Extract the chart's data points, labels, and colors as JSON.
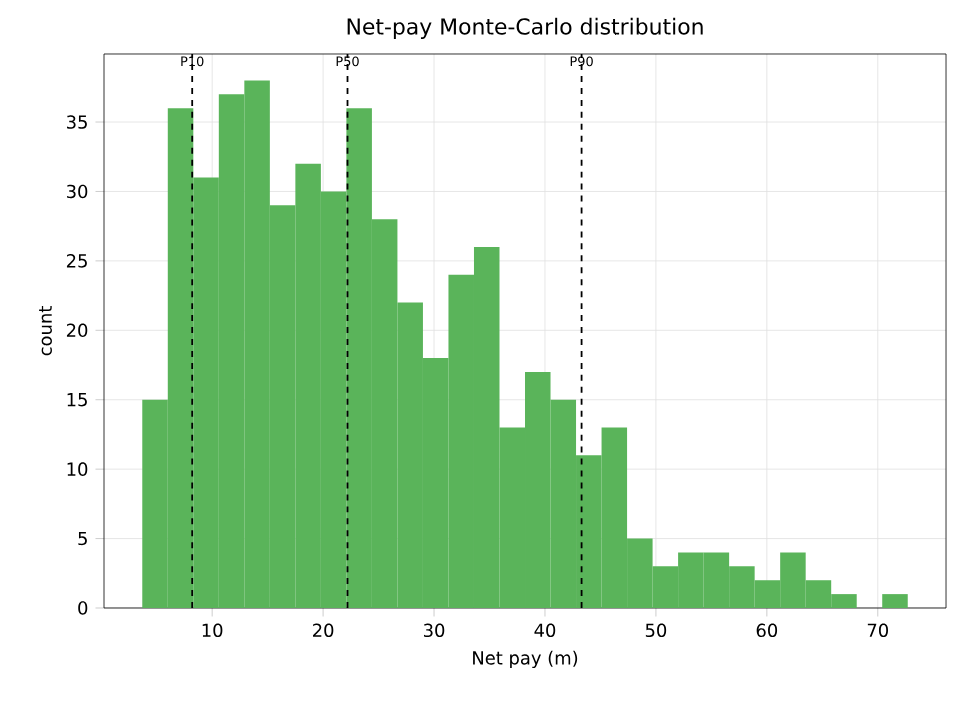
{
  "chart_data": {
    "type": "histogram",
    "title": "Net-pay Monte-Carlo distribution",
    "xlabel": "Net pay (m)",
    "ylabel": "count",
    "bins": [
      3.7,
      6.0,
      8.3,
      10.6,
      12.9,
      15.2,
      17.5,
      19.8,
      22.1,
      24.4,
      26.7,
      29.0,
      31.3,
      33.6,
      35.9,
      38.2,
      40.5,
      42.8,
      45.1,
      47.4,
      49.7,
      52.0,
      54.3,
      56.6,
      58.9,
      61.2,
      63.5,
      65.8,
      68.1,
      70.4,
      72.7
    ],
    "values": [
      15,
      36,
      31,
      37,
      38,
      29,
      32,
      30,
      36,
      28,
      22,
      18,
      24,
      26,
      13,
      17,
      15,
      11,
      13,
      5,
      3,
      4,
      4,
      3,
      2,
      4,
      2,
      1,
      0,
      1
    ],
    "color": "#5ab45a",
    "xlim": [
      0.25,
      76.15
    ],
    "ylim": [
      0,
      39.9
    ],
    "xticks": [
      10,
      20,
      30,
      40,
      50,
      60,
      70
    ],
    "yticks": [
      0,
      5,
      10,
      15,
      20,
      25,
      30,
      35
    ],
    "grid": true,
    "ref_lines": [
      {
        "axis": "x",
        "value": 8.2,
        "label": "P10",
        "color": "#000000",
        "line_style": "dashed"
      },
      {
        "axis": "x",
        "value": 22.2,
        "label": "P50",
        "color": "#000000",
        "line_style": "dashed"
      },
      {
        "axis": "x",
        "value": 43.3,
        "label": "P90",
        "color": "#000000",
        "line_style": "dashed"
      }
    ]
  }
}
